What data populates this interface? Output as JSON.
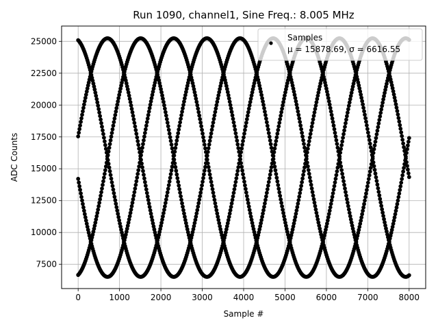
{
  "chart_data": {
    "type": "scatter",
    "title": "Run 1090, channel1, Sine Freq.: 8.005 MHz",
    "xlabel": "Sample #",
    "ylabel": "ADC Counts",
    "xlim": [
      -400,
      8400
    ],
    "ylim": [
      5600,
      26200
    ],
    "xticks": [
      0,
      1000,
      2000,
      3000,
      4000,
      5000,
      6000,
      7000,
      8000
    ],
    "yticks": [
      7500,
      10000,
      12500,
      15000,
      17500,
      20000,
      22500,
      25000
    ],
    "grid": true,
    "legend": {
      "placement": "top-right",
      "entries": [
        {
          "label": "Samples",
          "stat_text": "μ = 15878.69, σ = 6616.55"
        }
      ]
    },
    "series": [
      {
        "name": "Samples",
        "color": "#000000",
        "marker": "circle",
        "x_range": [
          0,
          8000
        ],
        "model": "sine",
        "offset": 15878.69,
        "amplitude": 9360,
        "period_samples": 3203,
        "phase_offsets_samples": [
          -91,
          710,
          1510,
          2311
        ]
      }
    ]
  }
}
